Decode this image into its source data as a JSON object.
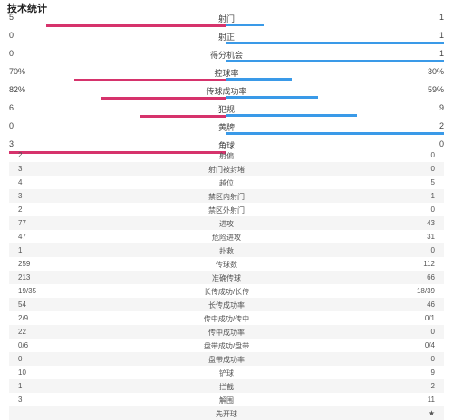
{
  "title": "技术统计",
  "colors": {
    "home": "#d6336c",
    "away": "#3a9ae8"
  },
  "bar_stats": [
    {
      "name": "射门",
      "left": "5",
      "right": "1",
      "left_share": 0.83,
      "right_share": 0.17
    },
    {
      "name": "射正",
      "left": "0",
      "right": "1",
      "left_share": 0,
      "right_share": 1
    },
    {
      "name": "得分机会",
      "left": "0",
      "right": "1",
      "left_share": 0,
      "right_share": 1
    },
    {
      "name": "控球率",
      "left": "70%",
      "right": "30%",
      "left_share": 0.7,
      "right_share": 0.3
    },
    {
      "name": "传球成功率",
      "left": "82%",
      "right": "59%",
      "left_share": 0.58,
      "right_share": 0.42
    },
    {
      "name": "犯规",
      "left": "6",
      "right": "9",
      "left_share": 0.4,
      "right_share": 0.6
    },
    {
      "name": "黄牌",
      "left": "0",
      "right": "2",
      "left_share": 0,
      "right_share": 1
    },
    {
      "name": "角球",
      "left": "3",
      "right": "0",
      "left_share": 1,
      "right_share": 0
    }
  ],
  "table_stats": [
    {
      "name": "射偏",
      "left": "2",
      "right": "0"
    },
    {
      "name": "射门被封堵",
      "left": "3",
      "right": "0"
    },
    {
      "name": "越位",
      "left": "4",
      "right": "5"
    },
    {
      "name": "禁区内射门",
      "left": "3",
      "right": "1"
    },
    {
      "name": "禁区外射门",
      "left": "2",
      "right": "0"
    },
    {
      "name": "进攻",
      "left": "77",
      "right": "43"
    },
    {
      "name": "危险进攻",
      "left": "47",
      "right": "31"
    },
    {
      "name": "扑救",
      "left": "1",
      "right": "0"
    },
    {
      "name": "传球数",
      "left": "259",
      "right": "112"
    },
    {
      "name": "准确传球",
      "left": "213",
      "right": "66"
    },
    {
      "name": "长传成功/长传",
      "left": "19/35",
      "right": "18/39"
    },
    {
      "name": "长传成功率",
      "left": "54",
      "right": "46"
    },
    {
      "name": "传中成功/传中",
      "left": "2/9",
      "right": "0/1"
    },
    {
      "name": "传中成功率",
      "left": "22",
      "right": "0"
    },
    {
      "name": "盘带成功/盘带",
      "left": "0/6",
      "right": "0/4"
    },
    {
      "name": "盘带成功率",
      "left": "0",
      "right": "0"
    },
    {
      "name": "铲球",
      "left": "10",
      "right": "9"
    },
    {
      "name": "拦截",
      "left": "1",
      "right": "2"
    },
    {
      "name": "解围",
      "left": "3",
      "right": "11"
    },
    {
      "name": "先开球",
      "left": "",
      "right": "★"
    }
  ]
}
